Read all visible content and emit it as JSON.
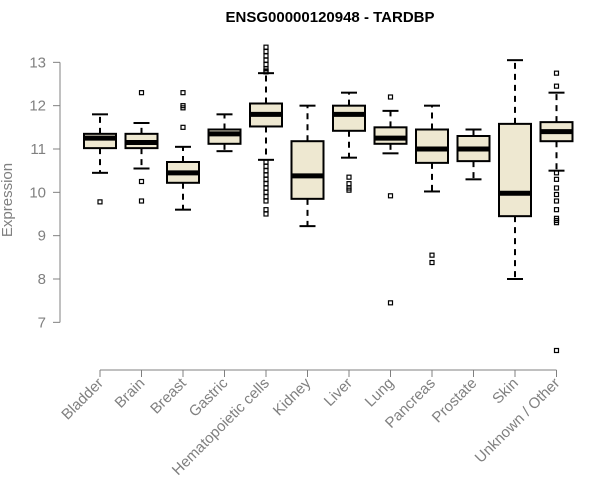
{
  "chart_data": {
    "type": "boxplot",
    "title": "ENSG00000120948 - TARDBP",
    "xlabel": "",
    "ylabel": "Expression",
    "ylim": [
      6.2,
      13.4
    ],
    "yticks": [
      7,
      8,
      9,
      10,
      11,
      12,
      13
    ],
    "box_color": "#EEE8D1",
    "stroke_color": "#000000",
    "axis_color": "#808080",
    "categories": [
      "Bladder",
      "Brain",
      "Breast",
      "Gastric",
      "Hematopoietic cells",
      "Kidney",
      "Liver",
      "Lung",
      "Pancreas",
      "Prostate",
      "Skin",
      "Unknown / Other"
    ],
    "boxes": [
      {
        "name": "Bladder",
        "whisker_low": 10.45,
        "q1": 11.02,
        "median": 11.25,
        "q3": 11.35,
        "whisker_high": 11.8,
        "outliers": [
          9.78
        ]
      },
      {
        "name": "Brain",
        "whisker_low": 10.55,
        "q1": 11.02,
        "median": 11.15,
        "q3": 11.35,
        "whisker_high": 11.6,
        "outliers": [
          12.3,
          10.25,
          9.8
        ]
      },
      {
        "name": "Breast",
        "whisker_low": 9.6,
        "q1": 10.22,
        "median": 10.45,
        "q3": 10.7,
        "whisker_high": 11.05,
        "outliers": [
          12.3,
          12.0,
          11.95,
          11.5
        ]
      },
      {
        "name": "Gastric",
        "whisker_low": 10.95,
        "q1": 11.12,
        "median": 11.35,
        "q3": 11.45,
        "whisker_high": 11.8,
        "outliers": []
      },
      {
        "name": "Hematopoietic cells",
        "whisker_low": 10.75,
        "q1": 11.52,
        "median": 11.8,
        "q3": 12.05,
        "whisker_high": 12.75,
        "outliers": [
          13.35,
          13.25,
          13.15,
          13.05,
          12.95,
          12.85,
          12.8,
          12.78,
          10.7,
          10.6,
          10.5,
          10.4,
          10.3,
          10.2,
          10.1,
          10.0,
          9.9,
          9.8,
          9.6,
          9.5
        ]
      },
      {
        "name": "Kidney",
        "whisker_low": 9.22,
        "q1": 9.85,
        "median": 10.38,
        "q3": 11.18,
        "whisker_high": 12.0,
        "outliers": []
      },
      {
        "name": "Liver",
        "whisker_low": 10.8,
        "q1": 11.42,
        "median": 11.8,
        "q3": 12.0,
        "whisker_high": 12.3,
        "outliers": [
          10.35,
          10.2,
          10.1,
          10.05
        ]
      },
      {
        "name": "Lung",
        "whisker_low": 10.9,
        "q1": 11.12,
        "median": 11.25,
        "q3": 11.5,
        "whisker_high": 11.88,
        "outliers": [
          12.2,
          9.92,
          7.45
        ]
      },
      {
        "name": "Pancreas",
        "whisker_low": 10.02,
        "q1": 10.68,
        "median": 11.0,
        "q3": 11.45,
        "whisker_high": 12.0,
        "outliers": [
          8.55,
          8.38
        ]
      },
      {
        "name": "Prostate",
        "whisker_low": 10.3,
        "q1": 10.72,
        "median": 11.0,
        "q3": 11.3,
        "whisker_high": 11.45,
        "outliers": []
      },
      {
        "name": "Skin",
        "whisker_low": 8.0,
        "q1": 9.45,
        "median": 9.98,
        "q3": 11.58,
        "whisker_high": 13.05,
        "outliers": []
      },
      {
        "name": "Unknown / Other",
        "whisker_low": 10.5,
        "q1": 11.18,
        "median": 11.4,
        "q3": 11.62,
        "whisker_high": 12.3,
        "outliers": [
          12.75,
          12.45,
          10.45,
          10.3,
          10.1,
          9.95,
          9.8,
          9.6,
          9.4,
          9.35,
          9.3,
          6.35
        ]
      }
    ]
  }
}
